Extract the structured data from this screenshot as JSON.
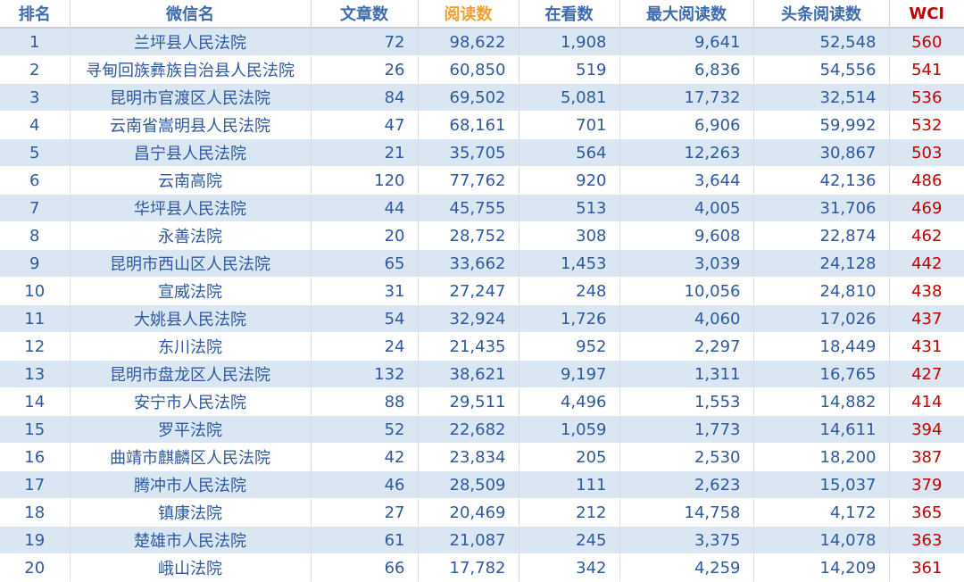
{
  "headers": [
    "排名",
    "微信名",
    "文章数",
    "阅读数",
    "在看数",
    "最大阅读数",
    "头条阅读数",
    "WCI"
  ],
  "rows": [
    [
      "1",
      "兰坪县人民法院",
      "72",
      "98,622",
      "1,908",
      "9,641",
      "52,548",
      "560"
    ],
    [
      "2",
      "寻甸回族彝族自治县人民法院",
      "26",
      "60,850",
      "519",
      "6,836",
      "54,556",
      "541"
    ],
    [
      "3",
      "昆明市官渡区人民法院",
      "84",
      "69,502",
      "5,081",
      "17,732",
      "32,514",
      "536"
    ],
    [
      "4",
      "云南省嵩明县人民法院",
      "47",
      "68,161",
      "701",
      "6,906",
      "59,992",
      "532"
    ],
    [
      "5",
      "昌宁县人民法院",
      "21",
      "35,705",
      "564",
      "12,263",
      "30,867",
      "503"
    ],
    [
      "6",
      "云南高院",
      "120",
      "77,762",
      "920",
      "3,644",
      "42,136",
      "486"
    ],
    [
      "7",
      "华坪县人民法院",
      "44",
      "45,755",
      "513",
      "4,005",
      "31,706",
      "469"
    ],
    [
      "8",
      "永善法院",
      "20",
      "28,752",
      "308",
      "9,608",
      "22,874",
      "462"
    ],
    [
      "9",
      "昆明市西山区人民法院",
      "65",
      "33,662",
      "1,453",
      "3,039",
      "24,128",
      "442"
    ],
    [
      "10",
      "宣威法院",
      "31",
      "27,247",
      "248",
      "10,056",
      "24,810",
      "438"
    ],
    [
      "11",
      "大姚县人民法院",
      "54",
      "32,924",
      "1,726",
      "4,060",
      "17,026",
      "437"
    ],
    [
      "12",
      "东川法院",
      "24",
      "21,435",
      "952",
      "2,297",
      "18,449",
      "431"
    ],
    [
      "13",
      "昆明市盘龙区人民法院",
      "132",
      "38,621",
      "9,197",
      "1,311",
      "16,765",
      "427"
    ],
    [
      "14",
      "安宁市人民法院",
      "88",
      "29,511",
      "4,496",
      "1,553",
      "14,882",
      "414"
    ],
    [
      "15",
      "罗平法院",
      "52",
      "22,682",
      "1,059",
      "1,773",
      "14,611",
      "394"
    ],
    [
      "16",
      "曲靖市麒麟区人民法院",
      "42",
      "23,834",
      "205",
      "2,530",
      "18,200",
      "387"
    ],
    [
      "17",
      "腾冲市人民法院",
      "46",
      "28,509",
      "111",
      "2,623",
      "15,037",
      "379"
    ],
    [
      "18",
      "镇康法院",
      "27",
      "20,469",
      "212",
      "14,758",
      "4,172",
      "365"
    ],
    [
      "19",
      "楚雄市人民法院",
      "61",
      "21,087",
      "245",
      "3,375",
      "14,078",
      "363"
    ],
    [
      "20",
      "峨山法院",
      "66",
      "17,782",
      "342",
      "4,259",
      "14,209",
      "361"
    ]
  ]
}
